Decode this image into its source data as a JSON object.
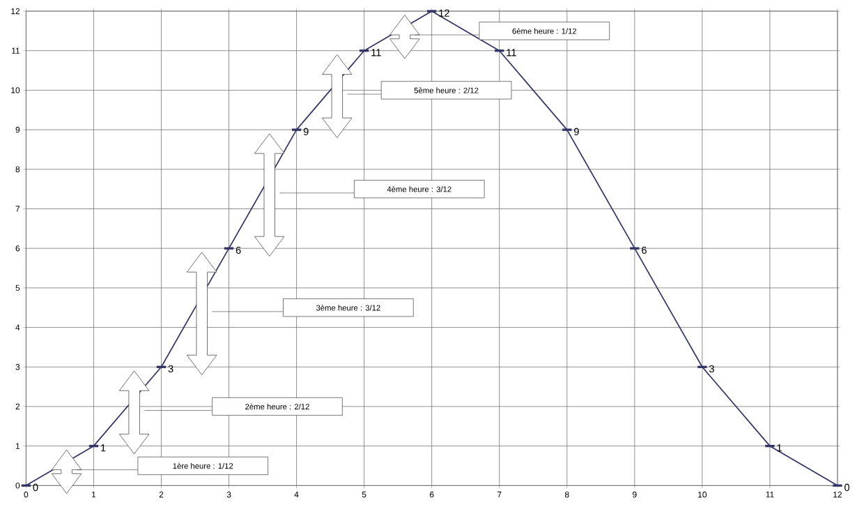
{
  "chart_data": {
    "type": "line",
    "x": [
      0,
      1,
      2,
      3,
      4,
      5,
      6,
      7,
      8,
      9,
      10,
      11,
      12
    ],
    "values": [
      0,
      1,
      3,
      6,
      9,
      11,
      12,
      11,
      9,
      6,
      3,
      1,
      0
    ],
    "color": "#333366",
    "line_style": "solid",
    "data_labels": true,
    "grid": true,
    "xlim": [
      0,
      12
    ],
    "ylim": [
      0,
      12
    ],
    "xticks": [
      0,
      1,
      2,
      3,
      4,
      5,
      6,
      7,
      8,
      9,
      10,
      11,
      12
    ],
    "yticks": [
      0,
      1,
      2,
      3,
      4,
      5,
      6,
      7,
      8,
      9,
      10,
      11,
      12
    ],
    "annotations": [
      "1ère heure : 1/12",
      "2ème heure : 2/12",
      "3ème heure : 3/12",
      "4ème heure : 3/12",
      "5ème heure : 2/12",
      "6ème heure : 1/12"
    ]
  }
}
